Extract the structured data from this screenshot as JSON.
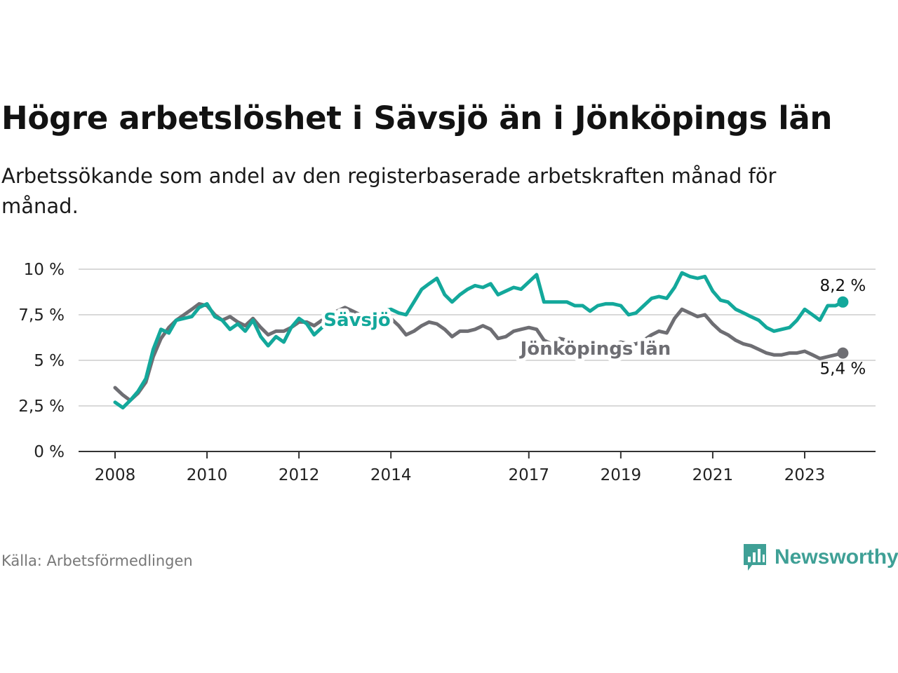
{
  "header": {
    "title": "Högre arbetslöshet i Sävsjö än i Jönköpings län",
    "subtitle": "Arbetssökande som andel av den registerbaserade arbetskraften månad för månad."
  },
  "footer": {
    "source": "Källa: Arbetsförmedlingen",
    "brand": "Newsworthy"
  },
  "colors": {
    "savsjo": "#13a89b",
    "lan": "#6e6e73",
    "grid": "#d9d9d9",
    "axis": "#333333",
    "brand": "#3fa096"
  },
  "chart_data": {
    "type": "line",
    "title": "Högre arbetslöshet i Sävsjö än i Jönköpings län",
    "xlabel": "",
    "ylabel": "",
    "ylim": [
      0,
      10
    ],
    "xlim": [
      2007.6,
      2024.9
    ],
    "y_ticks": [
      0,
      2.5,
      5,
      7.5,
      10
    ],
    "y_tick_labels": [
      "0 %",
      "2,5 %",
      "5 %",
      "7,5 %",
      "10 %"
    ],
    "x_ticks": [
      2008,
      2010,
      2012,
      2014,
      2017,
      2019,
      2021,
      2023
    ],
    "x_tick_labels": [
      "2008",
      "2010",
      "2012",
      "2014",
      "2017",
      "2019",
      "2021",
      "2023"
    ],
    "grid": true,
    "series": [
      {
        "name": "Sävsjö",
        "end_label": "8,2 %",
        "x": [
          2008.0,
          2008.17,
          2008.33,
          2008.5,
          2008.67,
          2008.83,
          2009.0,
          2009.17,
          2009.33,
          2009.5,
          2009.67,
          2009.83,
          2010.0,
          2010.17,
          2010.33,
          2010.5,
          2010.67,
          2010.83,
          2011.0,
          2011.17,
          2011.33,
          2011.5,
          2011.67,
          2011.83,
          2012.0,
          2012.17,
          2012.33,
          2012.5,
          2012.67,
          2012.83,
          2013.0,
          2013.17,
          2013.33,
          2013.5,
          2013.67,
          2013.83,
          2014.0,
          2014.17,
          2014.33,
          2014.5,
          2014.67,
          2014.83,
          2015.0,
          2015.17,
          2015.33,
          2015.5,
          2015.67,
          2015.83,
          2016.0,
          2016.17,
          2016.33,
          2016.5,
          2016.67,
          2016.83,
          2017.0,
          2017.17,
          2017.33,
          2017.5,
          2017.67,
          2017.83,
          2018.0,
          2018.17,
          2018.33,
          2018.5,
          2018.67,
          2018.83,
          2019.0,
          2019.17,
          2019.33,
          2019.5,
          2019.67,
          2019.83,
          2020.0,
          2020.17,
          2020.33,
          2020.5,
          2020.67,
          2020.83,
          2021.0,
          2021.17,
          2021.33,
          2021.5,
          2021.67,
          2021.83,
          2022.0,
          2022.17,
          2022.33,
          2022.5,
          2022.67,
          2022.83,
          2023.0,
          2023.17,
          2023.33,
          2023.5,
          2023.67,
          2023.83
        ],
        "values": [
          2.7,
          2.4,
          2.8,
          3.3,
          4.0,
          5.6,
          6.7,
          6.5,
          7.2,
          7.3,
          7.4,
          7.9,
          8.1,
          7.4,
          7.2,
          6.7,
          7.0,
          6.6,
          7.2,
          6.3,
          5.8,
          6.3,
          6.0,
          6.8,
          7.3,
          7.0,
          6.4,
          6.8,
          7.1,
          7.3,
          7.6,
          7.5,
          7.4,
          7.5,
          7.6,
          7.7,
          7.8,
          7.6,
          7.5,
          8.2,
          8.9,
          9.2,
          9.5,
          8.6,
          8.2,
          8.6,
          8.9,
          9.1,
          9.0,
          9.2,
          8.6,
          8.8,
          9.0,
          8.9,
          9.3,
          9.7,
          8.2,
          8.2,
          8.2,
          8.2,
          8.0,
          8.0,
          7.7,
          8.0,
          8.1,
          8.1,
          8.0,
          7.5,
          7.6,
          8.0,
          8.4,
          8.5,
          8.4,
          9.0,
          9.8,
          9.6,
          9.5,
          9.6,
          8.8,
          8.3,
          8.2,
          7.8,
          7.6,
          7.4,
          7.2,
          6.8,
          6.6,
          6.7,
          6.8,
          7.2,
          7.8,
          7.5,
          7.2,
          8.0,
          8.0,
          8.2
        ]
      },
      {
        "name": "Jönköpings län",
        "end_label": "5,4 %",
        "x": [
          2008.0,
          2008.17,
          2008.33,
          2008.5,
          2008.67,
          2008.83,
          2009.0,
          2009.17,
          2009.33,
          2009.5,
          2009.67,
          2009.83,
          2010.0,
          2010.17,
          2010.33,
          2010.5,
          2010.67,
          2010.83,
          2011.0,
          2011.17,
          2011.33,
          2011.5,
          2011.67,
          2011.83,
          2012.0,
          2012.17,
          2012.33,
          2012.5,
          2012.67,
          2012.83,
          2013.0,
          2013.17,
          2013.33,
          2013.5,
          2013.67,
          2013.83,
          2014.0,
          2014.17,
          2014.33,
          2014.5,
          2014.67,
          2014.83,
          2015.0,
          2015.17,
          2015.33,
          2015.5,
          2015.67,
          2015.83,
          2016.0,
          2016.17,
          2016.33,
          2016.5,
          2016.67,
          2016.83,
          2017.0,
          2017.17,
          2017.33,
          2017.5,
          2017.67,
          2017.83,
          2018.0,
          2018.17,
          2018.33,
          2018.5,
          2018.67,
          2018.83,
          2019.0,
          2019.17,
          2019.33,
          2019.5,
          2019.67,
          2019.83,
          2020.0,
          2020.17,
          2020.33,
          2020.5,
          2020.67,
          2020.83,
          2021.0,
          2021.17,
          2021.33,
          2021.5,
          2021.67,
          2021.83,
          2022.0,
          2022.17,
          2022.33,
          2022.5,
          2022.67,
          2022.83,
          2023.0,
          2023.17,
          2023.33,
          2023.5,
          2023.67,
          2023.83
        ],
        "values": [
          3.5,
          3.1,
          2.8,
          3.2,
          3.8,
          5.2,
          6.2,
          6.8,
          7.2,
          7.5,
          7.8,
          8.1,
          8.0,
          7.5,
          7.2,
          7.4,
          7.1,
          6.9,
          7.3,
          6.8,
          6.4,
          6.6,
          6.6,
          6.8,
          7.1,
          7.1,
          6.9,
          7.2,
          7.5,
          7.7,
          7.9,
          7.7,
          7.5,
          7.4,
          7.5,
          7.4,
          7.3,
          6.9,
          6.4,
          6.6,
          6.9,
          7.1,
          7.0,
          6.7,
          6.3,
          6.6,
          6.6,
          6.7,
          6.9,
          6.7,
          6.2,
          6.3,
          6.6,
          6.7,
          6.8,
          6.7,
          6.1,
          5.9,
          6.2,
          6.1,
          5.9,
          5.8,
          5.8,
          5.8,
          5.8,
          5.8,
          6.0,
          5.9,
          5.9,
          6.1,
          6.4,
          6.6,
          6.5,
          7.3,
          7.8,
          7.6,
          7.4,
          7.5,
          7.0,
          6.6,
          6.4,
          6.1,
          5.9,
          5.8,
          5.6,
          5.4,
          5.3,
          5.3,
          5.4,
          5.4,
          5.5,
          5.3,
          5.1,
          5.2,
          5.3,
          5.4
        ]
      }
    ],
    "annotations": [
      {
        "text": "Sävsjö",
        "series": 0
      },
      {
        "text": "Jönköpings län",
        "series": 1
      }
    ]
  }
}
